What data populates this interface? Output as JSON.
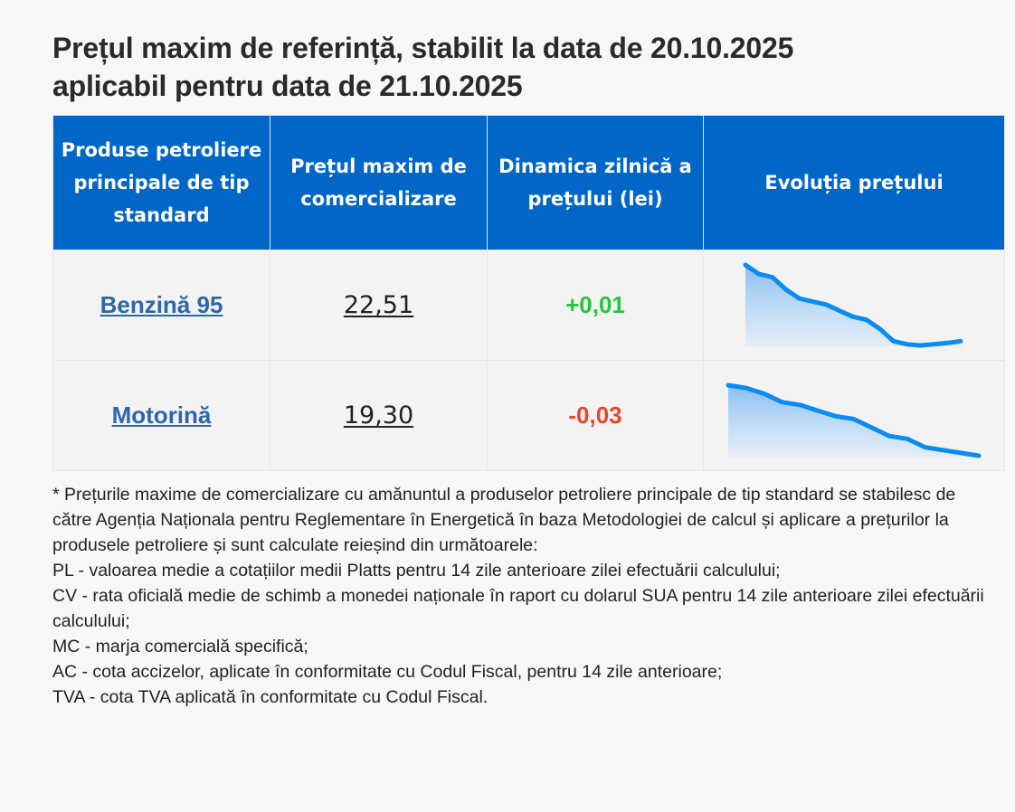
{
  "heading": {
    "line1": "Prețul maxim de referință, stabilit la data de 20.10.2025",
    "line2": "aplicabil pentru data de 21.10.2025"
  },
  "table": {
    "headers": [
      "Produse petroliere principale de tip standard",
      "Prețul maxim de comercializare",
      "Dinamica zilnică a prețului (lei)",
      "Evoluția prețului"
    ],
    "rows": [
      {
        "product": "Benzină 95",
        "price": "22,51",
        "change": "+0,01",
        "change_color": "#27c43f",
        "trend": [
          28.1,
          27.95,
          27.9,
          27.7,
          27.55,
          27.5,
          27.45,
          27.35,
          27.25,
          27.2,
          27.05,
          26.85,
          26.8,
          26.78,
          26.8,
          26.82,
          26.85
        ]
      },
      {
        "product": "Motorină",
        "price": "19,30",
        "change": "-0,03",
        "change_color": "#e8452c",
        "trend": [
          26.2,
          26.15,
          26.05,
          25.9,
          25.85,
          25.75,
          25.65,
          25.6,
          25.45,
          25.3,
          25.25,
          25.1,
          25.05,
          25.0,
          24.95
        ]
      }
    ]
  },
  "chart_color": "#0a8cf0",
  "notes": [
    "* Prețurile maxime de comercializare cu amănuntul a produselor petroliere principale de tip standard se stabilesc de către Agenția Naționala pentru Reglementare în Energetică în baza Metodologiei de calcul și aplicare a prețurilor la produsele petroliere și sunt calculate reieșind din următoarele:",
    "PL - valoarea medie a cotațiilor medii Platts pentru 14 zile anterioare zilei efectuării calculului;",
    "CV - rata oficială medie de schimb a monedei naționale în raport cu dolarul SUA pentru 14 zile anterioare zilei efectuării calculului;",
    "MC - marja comercială specifică;",
    "AC - cota accizelor, aplicate în conformitate cu Codul Fiscal, pentru 14 zile anterioare;",
    "TVA - cota TVA aplicată în conformitate cu Codul Fiscal."
  ]
}
